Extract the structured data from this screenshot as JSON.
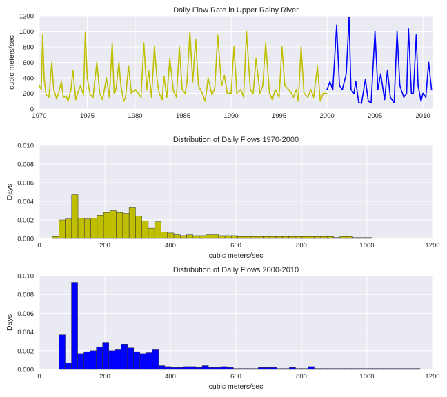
{
  "colors": {
    "plot_bg": "#EAEAF2",
    "grid": "#FFFFFF",
    "series_1970_2000": "#BFBF00",
    "series_2000_2010": "#0000FF",
    "bar_edge": "#333333",
    "text": "#262626"
  },
  "chart_data": [
    {
      "type": "line",
      "title": "Daily Flow Rate in Upper Rainy River",
      "xlabel": "",
      "ylabel": "cubic meters/sec",
      "xlim": [
        1970,
        2011
      ],
      "ylim": [
        0,
        1200
      ],
      "xticks": [
        1970,
        1975,
        1980,
        1985,
        1990,
        1995,
        2000,
        2005,
        2010
      ],
      "yticks": [
        0,
        200,
        400,
        600,
        800,
        1000,
        1200
      ],
      "grid": true,
      "legend": "none",
      "series": [
        {
          "color_key": "series_1970_2000",
          "x": [
            1970.0,
            1970.2,
            1970.35,
            1970.5,
            1970.7,
            1971.0,
            1971.3,
            1971.5,
            1971.8,
            1972.0,
            1972.3,
            1972.5,
            1972.8,
            1973.0,
            1973.3,
            1973.5,
            1973.8,
            1974.0,
            1974.3,
            1974.6,
            1974.8,
            1975.0,
            1975.3,
            1975.6,
            1976.0,
            1976.3,
            1976.6,
            1977.0,
            1977.3,
            1977.6,
            1977.8,
            1978.0,
            1978.3,
            1978.5,
            1978.8,
            1979.0,
            1979.3,
            1979.6,
            1980.0,
            1980.3,
            1980.6,
            1980.9,
            1981.2,
            1981.4,
            1981.7,
            1982.0,
            1982.3,
            1982.5,
            1982.8,
            1983.0,
            1983.3,
            1983.6,
            1984.0,
            1984.3,
            1984.6,
            1984.9,
            1985.2,
            1985.4,
            1985.7,
            1986.0,
            1986.3,
            1986.6,
            1987.0,
            1987.3,
            1987.6,
            1988.0,
            1988.3,
            1988.6,
            1989.0,
            1989.3,
            1989.6,
            1990.0,
            1990.3,
            1990.6,
            1991.0,
            1991.3,
            1991.6,
            1992.0,
            1992.3,
            1992.6,
            1993.0,
            1993.3,
            1993.6,
            1994.0,
            1994.3,
            1994.6,
            1995.0,
            1995.3,
            1995.6,
            1996.0,
            1996.3,
            1996.5,
            1996.8,
            1997.0,
            1997.3,
            1997.6,
            1998.0,
            1998.3,
            1998.6,
            1999.0,
            1999.3,
            1999.6,
            1999.95
          ],
          "y": [
            300,
            250,
            950,
            400,
            180,
            150,
            600,
            250,
            130,
            200,
            350,
            150,
            160,
            100,
            250,
            500,
            120,
            200,
            300,
            180,
            990,
            400,
            180,
            150,
            600,
            200,
            120,
            400,
            150,
            850,
            200,
            250,
            600,
            300,
            100,
            150,
            550,
            200,
            250,
            200,
            150,
            850,
            250,
            500,
            150,
            800,
            350,
            200,
            120,
            420,
            150,
            650,
            220,
            150,
            800,
            250,
            200,
            350,
            990,
            350,
            900,
            300,
            200,
            100,
            400,
            180,
            270,
            950,
            300,
            430,
            200,
            200,
            800,
            200,
            250,
            150,
            1000,
            250,
            200,
            650,
            200,
            300,
            850,
            200,
            120,
            250,
            150,
            800,
            300,
            250,
            200,
            150,
            250,
            100,
            800,
            200,
            150,
            250,
            150,
            550,
            100,
            200,
            200
          ]
        },
        {
          "color_key": "series_2000_2010",
          "x": [
            2000.0,
            2000.3,
            2000.6,
            2001.0,
            2001.3,
            2001.6,
            2002.0,
            2002.3,
            2002.5,
            2002.8,
            2003.0,
            2003.3,
            2003.6,
            2004.0,
            2004.3,
            2004.6,
            2005.0,
            2005.3,
            2005.6,
            2006.0,
            2006.3,
            2006.6,
            2007.0,
            2007.3,
            2007.6,
            2008.0,
            2008.3,
            2008.5,
            2008.8,
            2009.0,
            2009.3,
            2009.5,
            2009.8,
            2010.0,
            2010.3,
            2010.6,
            2010.9
          ],
          "y": [
            250,
            350,
            250,
            1080,
            300,
            250,
            450,
            1180,
            250,
            200,
            350,
            80,
            75,
            380,
            100,
            80,
            1000,
            250,
            450,
            120,
            500,
            150,
            80,
            1000,
            300,
            150,
            200,
            1030,
            200,
            200,
            950,
            300,
            100,
            200,
            150,
            600,
            250
          ]
        }
      ]
    },
    {
      "type": "bar",
      "title": "Distribution of Daily Flows 1970-2000",
      "xlabel": "cubic meters/sec",
      "ylabel": "Days",
      "xlim": [
        0,
        1200
      ],
      "ylim": [
        0,
        0.01
      ],
      "xticks": [
        0,
        200,
        400,
        600,
        800,
        1000,
        1200
      ],
      "yticks": [
        "0.000",
        "0.002",
        "0.004",
        "0.006",
        "0.008",
        "0.010"
      ],
      "grid": true,
      "legend": "none",
      "color_key": "series_1970_2000",
      "bin_start": 40,
      "bin_width": 19.5,
      "values": [
        0.0002,
        0.002,
        0.0021,
        0.0047,
        0.0022,
        0.0021,
        0.0022,
        0.0025,
        0.0028,
        0.003,
        0.0028,
        0.0027,
        0.0033,
        0.0024,
        0.0019,
        0.0011,
        0.0018,
        0.0007,
        0.0006,
        0.0004,
        0.0003,
        0.0004,
        0.0003,
        0.0003,
        0.0004,
        0.0004,
        0.0003,
        0.0003,
        0.0003,
        0.0002,
        0.0002,
        0.0002,
        0.0002,
        0.0002,
        0.0002,
        0.0002,
        0.0002,
        0.0002,
        0.0002,
        0.0002,
        0.0002,
        0.0002,
        0.0002,
        0.0002,
        0.0001,
        0.0002,
        0.0002,
        0.0001,
        0.0001,
        0.0001
      ]
    },
    {
      "type": "bar",
      "title": "Distribution of Daily Flows 2000-2010",
      "xlabel": "cubic meters/sec",
      "ylabel": "Days",
      "xlim": [
        0,
        1200
      ],
      "ylim": [
        0,
        0.01
      ],
      "xticks": [
        0,
        200,
        400,
        600,
        800,
        1000,
        1200
      ],
      "yticks": [
        "0.000",
        "0.002",
        "0.004",
        "0.006",
        "0.008",
        "0.010"
      ],
      "grid": true,
      "legend": "none",
      "color_key": "series_2000_2010",
      "bin_start": 60,
      "bin_width": 19.0,
      "values": [
        0.0037,
        0.0007,
        0.0093,
        0.0017,
        0.0019,
        0.002,
        0.0024,
        0.0029,
        0.002,
        0.0021,
        0.0027,
        0.0023,
        0.0019,
        0.0017,
        0.0018,
        0.0021,
        0.0004,
        0.0003,
        0.0002,
        0.0002,
        0.0003,
        0.0003,
        0.0002,
        0.0004,
        0.0002,
        0.0002,
        0.0003,
        0.0002,
        0.0001,
        0.0001,
        0.0001,
        0.0001,
        0.0002,
        0.0002,
        0.0002,
        0.0001,
        0.0001,
        0.0002,
        0.0001,
        0.0001,
        0.0003,
        0.0001,
        0.0001,
        0.0001,
        0.0001,
        0.0001,
        0.0001,
        0.0001,
        0.0001,
        0.0001,
        0.0001,
        0.0001,
        0.0001,
        0.0001,
        0.0001,
        0.0001,
        0.0001,
        0.0001
      ]
    }
  ]
}
